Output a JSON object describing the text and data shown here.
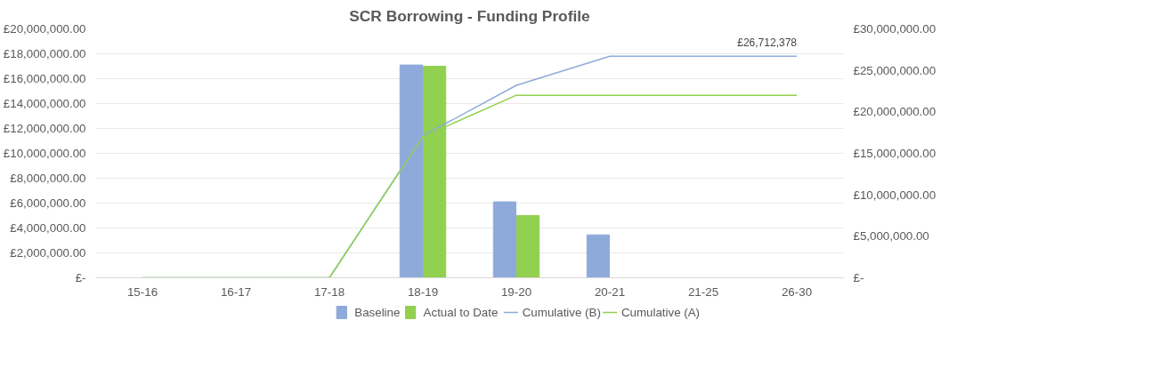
{
  "chart_data": {
    "type": "bar",
    "title": "SCR Borrowing - Funding Profile",
    "categories": [
      "15-16",
      "16-17",
      "17-18",
      "18-19",
      "19-20",
      "20-21",
      "21-25",
      "26-30"
    ],
    "series": [
      {
        "name": "Baseline",
        "color": "#8eaadb",
        "values": [
          0,
          0,
          0,
          17100000,
          6100000,
          3450000,
          0,
          0
        ]
      },
      {
        "name": "Actual to Date",
        "color": "#92d050",
        "values": [
          0,
          0,
          0,
          17000000,
          5000000,
          0,
          0,
          0
        ]
      },
      {
        "name": "Cumulative (B)",
        "type": "line",
        "axis": "y2",
        "color": "#8eaadb",
        "values": [
          0,
          0,
          0,
          17100000,
          23200000,
          26712378,
          26712378,
          26712378
        ]
      },
      {
        "name": "Cumulative (A)",
        "type": "line",
        "axis": "y2",
        "color": "#92d050",
        "values": [
          0,
          0,
          0,
          17000000,
          22000000,
          22000000,
          22000000,
          22000000
        ]
      }
    ],
    "ylim": [
      0,
      20000000
    ],
    "yticks": [
      {
        "value": 0,
        "label": "£-"
      },
      {
        "value": 2000000,
        "label": "£2,000,000.00"
      },
      {
        "value": 4000000,
        "label": "£4,000,000.00"
      },
      {
        "value": 6000000,
        "label": "£6,000,000.00"
      },
      {
        "value": 8000000,
        "label": "£8,000,000.00"
      },
      {
        "value": 10000000,
        "label": "£10,000,000.00"
      },
      {
        "value": 12000000,
        "label": "£12,000,000.00"
      },
      {
        "value": 14000000,
        "label": "£14,000,000.00"
      },
      {
        "value": 16000000,
        "label": "£16,000,000.00"
      },
      {
        "value": 18000000,
        "label": "£18,000,000.00"
      },
      {
        "value": 20000000,
        "label": "£20,000,000.00"
      }
    ],
    "y2lim": [
      0,
      30000000
    ],
    "y2ticks": [
      {
        "value": 0,
        "label": "£-"
      },
      {
        "value": 5000000,
        "label": "£5,000,000.00"
      },
      {
        "value": 10000000,
        "label": "£10,000,000.00"
      },
      {
        "value": 15000000,
        "label": "£15,000,000.00"
      },
      {
        "value": 20000000,
        "label": "£20,000,000.00"
      },
      {
        "value": 25000000,
        "label": "£25,000,000.00"
      },
      {
        "value": 30000000,
        "label": "£30,000,000.00"
      }
    ],
    "annotations": [
      "£26,712,378"
    ],
    "grid": "y",
    "legend": "bottom",
    "marker": "none",
    "line_style": "solid"
  }
}
